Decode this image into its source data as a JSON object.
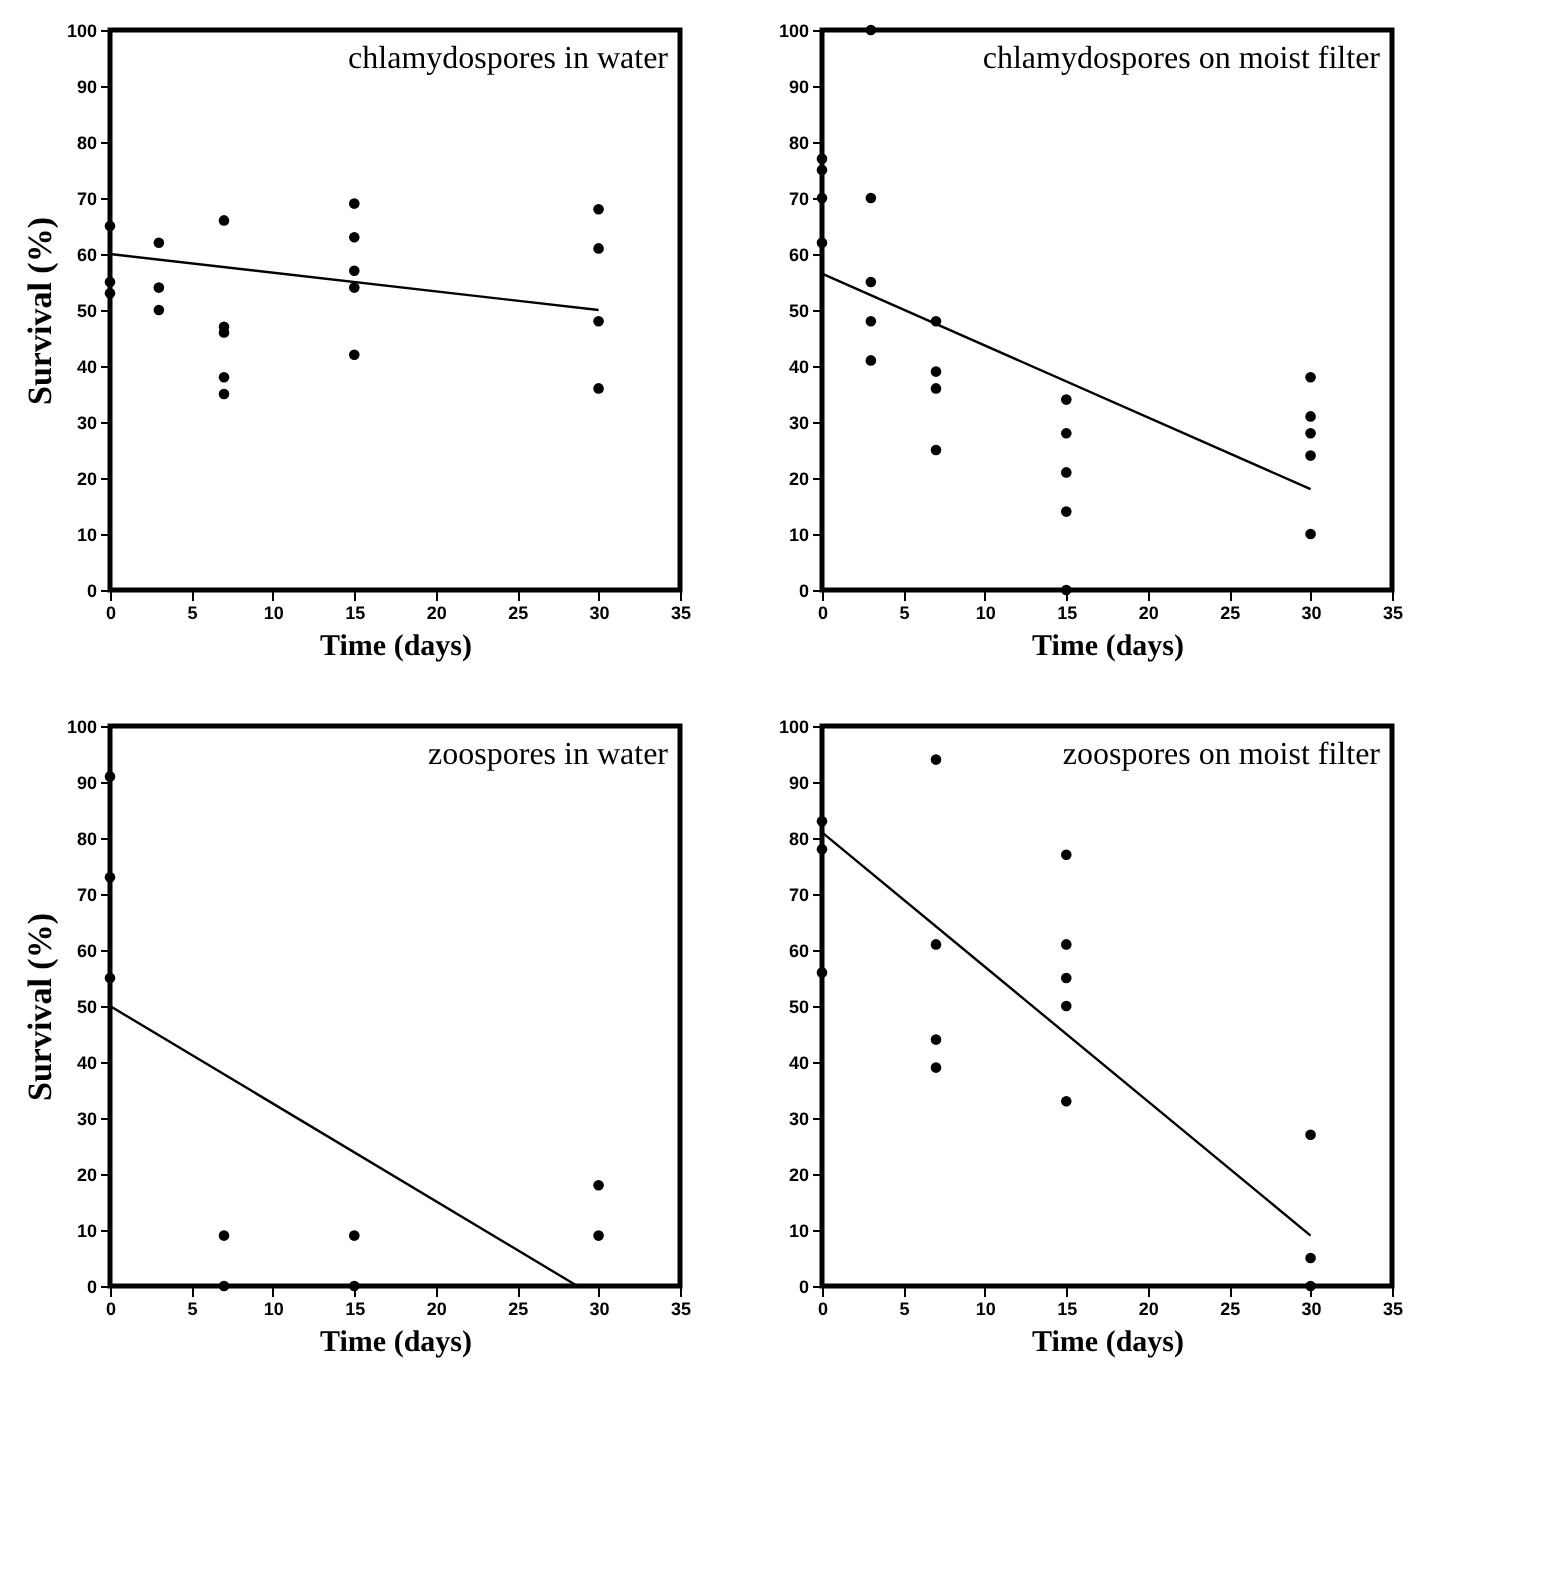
{
  "chart_data": [
    {
      "type": "scatter",
      "title": "chlamydospores in water",
      "xlabel": "Time (days)",
      "ylabel": "Survival (%)",
      "xlim": [
        0,
        35
      ],
      "xticks": [
        0,
        5,
        10,
        15,
        20,
        25,
        30,
        35
      ],
      "ylim": [
        0,
        100
      ],
      "yticks": [
        0,
        10,
        20,
        30,
        40,
        50,
        60,
        70,
        80,
        90,
        100
      ],
      "grid": false,
      "marker": "circle",
      "series": [
        {
          "type": "scatter",
          "color": "#000000",
          "x": [
            0,
            0,
            0,
            3,
            3,
            3,
            7,
            7,
            7,
            7,
            7,
            15,
            15,
            15,
            15,
            15,
            30,
            30,
            30,
            30
          ],
          "values": [
            65,
            55,
            53,
            62,
            54,
            50,
            66,
            47,
            46,
            38,
            35,
            69,
            63,
            57,
            54,
            42,
            68,
            61,
            48,
            36
          ]
        },
        {
          "type": "line",
          "marker": "none",
          "color": "#000000",
          "x": [
            0,
            30
          ],
          "values": [
            60,
            50
          ]
        }
      ]
    },
    {
      "type": "scatter",
      "title": "chlamydospores on moist filter",
      "xlabel": "Time (days)",
      "xlim": [
        0,
        35
      ],
      "xticks": [
        0,
        5,
        10,
        15,
        20,
        25,
        30,
        35
      ],
      "ylim": [
        0,
        100
      ],
      "yticks": [
        0,
        10,
        20,
        30,
        40,
        50,
        60,
        70,
        80,
        90,
        100
      ],
      "grid": false,
      "marker": "circle",
      "series": [
        {
          "type": "scatter",
          "color": "#000000",
          "x": [
            0,
            0,
            0,
            0,
            3,
            3,
            3,
            3,
            3,
            7,
            7,
            7,
            7,
            15,
            15,
            15,
            15,
            15,
            30,
            30,
            30,
            30,
            30
          ],
          "values": [
            77,
            75,
            70,
            62,
            100,
            70,
            55,
            48,
            41,
            48,
            39,
            36,
            25,
            34,
            28,
            21,
            14,
            0,
            38,
            31,
            28,
            24,
            10
          ]
        },
        {
          "type": "line",
          "marker": "none",
          "color": "#000000",
          "x": [
            0,
            30
          ],
          "values": [
            56.5,
            18
          ]
        }
      ]
    },
    {
      "type": "scatter",
      "title": "zoospores in water",
      "xlabel": "Time (days)",
      "ylabel": "Survival (%)",
      "xlim": [
        0,
        35
      ],
      "xticks": [
        0,
        5,
        10,
        15,
        20,
        25,
        30,
        35
      ],
      "ylim": [
        0,
        100
      ],
      "yticks": [
        0,
        10,
        20,
        30,
        40,
        50,
        60,
        70,
        80,
        90,
        100
      ],
      "grid": false,
      "marker": "circle",
      "series": [
        {
          "type": "scatter",
          "color": "#000000",
          "x": [
            0,
            0,
            0,
            7,
            7,
            15,
            15,
            30,
            30
          ],
          "values": [
            91,
            73,
            55,
            9,
            0,
            9,
            0,
            18,
            9
          ]
        },
        {
          "type": "line",
          "marker": "none",
          "color": "#000000",
          "x": [
            0,
            28.7
          ],
          "values": [
            50,
            0
          ]
        }
      ]
    },
    {
      "type": "scatter",
      "title": "zoospores on moist filter",
      "xlabel": "Time (days)",
      "xlim": [
        0,
        35
      ],
      "xticks": [
        0,
        5,
        10,
        15,
        20,
        25,
        30,
        35
      ],
      "ylim": [
        0,
        100
      ],
      "yticks": [
        0,
        10,
        20,
        30,
        40,
        50,
        60,
        70,
        80,
        90,
        100
      ],
      "grid": false,
      "marker": "circle",
      "series": [
        {
          "type": "scatter",
          "color": "#000000",
          "x": [
            0,
            0,
            0,
            7,
            7,
            7,
            7,
            15,
            15,
            15,
            15,
            15,
            30,
            30,
            30
          ],
          "values": [
            83,
            78,
            56,
            94,
            61,
            44,
            39,
            77,
            61,
            55,
            50,
            33,
            27,
            5,
            0
          ]
        },
        {
          "type": "line",
          "marker": "none",
          "color": "#000000",
          "x": [
            0,
            30
          ],
          "values": [
            81,
            9
          ]
        }
      ]
    }
  ]
}
